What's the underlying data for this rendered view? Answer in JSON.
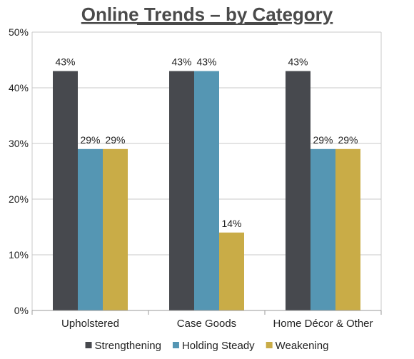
{
  "chart_data": {
    "type": "bar",
    "title": "Online Trends – by Category",
    "categories": [
      "Upholstered",
      "Case Goods",
      "Home Décor & Other"
    ],
    "series": [
      {
        "name": "Strengthening",
        "values": [
          43,
          43,
          43
        ],
        "labels": [
          "43%",
          "43%",
          "43%"
        ],
        "color": "#47494e"
      },
      {
        "name": "Holding Steady",
        "values": [
          29,
          43,
          29
        ],
        "labels": [
          "29%",
          "43%",
          "29%"
        ],
        "color": "#5596b3"
      },
      {
        "name": "Weakening",
        "values": [
          29,
          14,
          29
        ],
        "labels": [
          "29%",
          "14%",
          "29%"
        ],
        "color": "#c9ac47"
      }
    ],
    "ylim": [
      0,
      50
    ],
    "yticks": [
      "0%",
      "10%",
      "20%",
      "30%",
      "40%",
      "50%"
    ],
    "grid": true,
    "legend_position": "bottom",
    "xlabel": "",
    "ylabel": ""
  }
}
